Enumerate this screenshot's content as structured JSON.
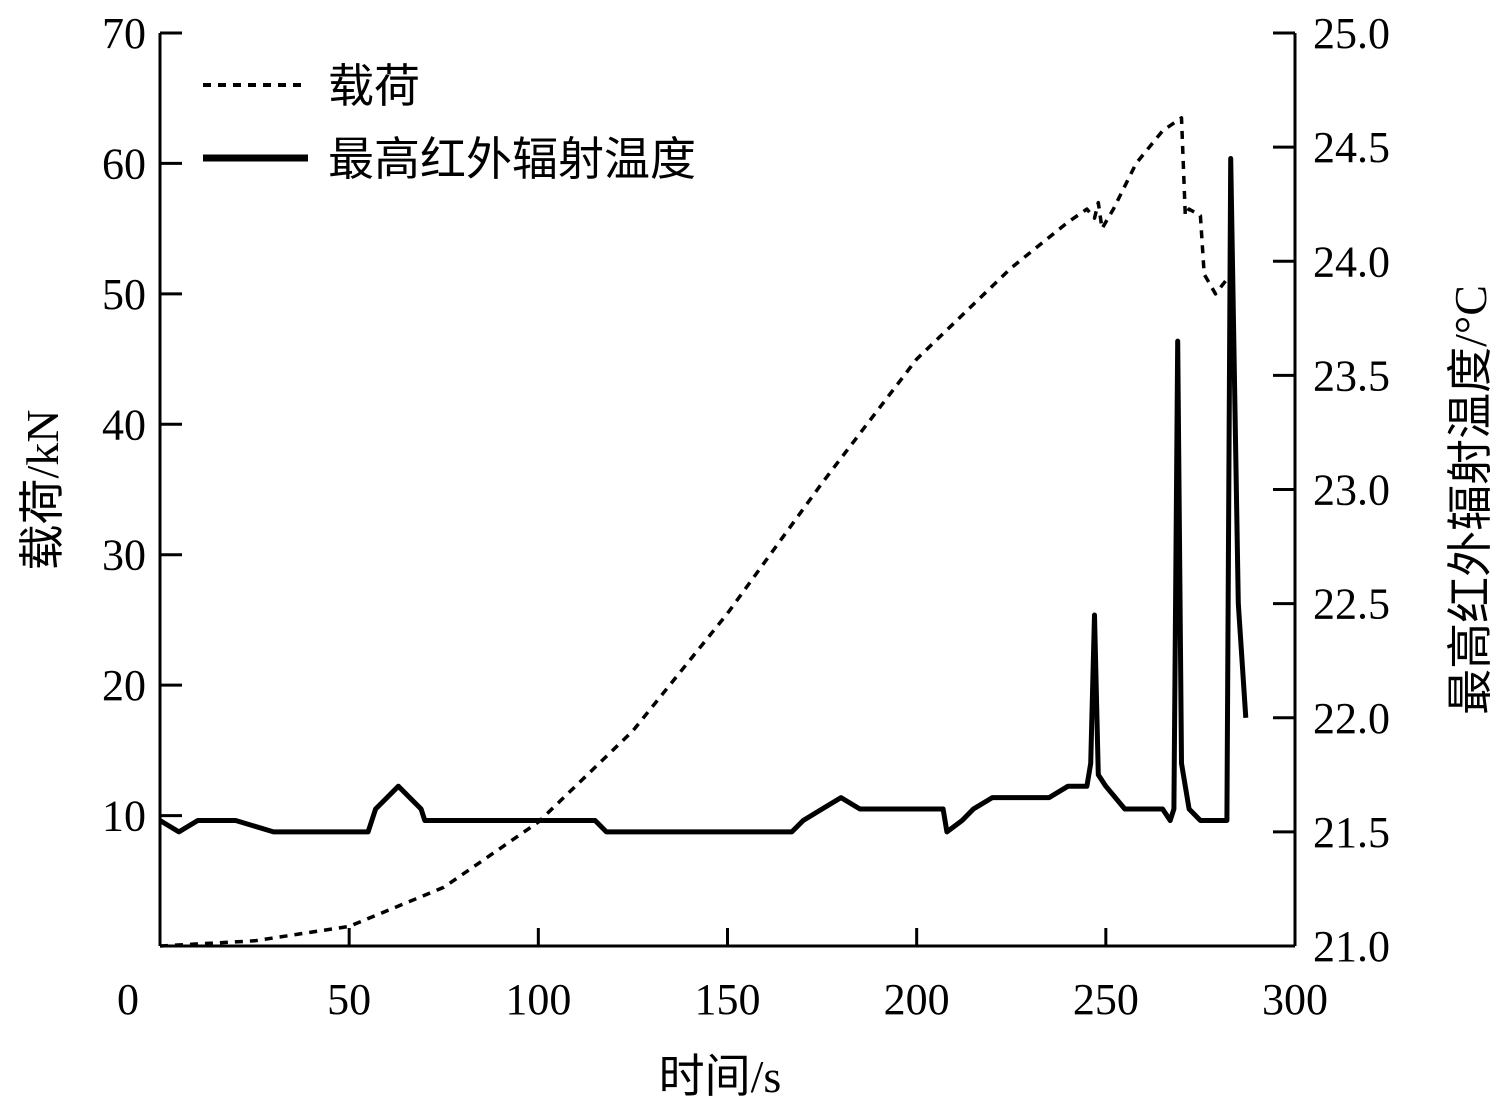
{
  "chart_data": {
    "type": "line",
    "xlabel": "时间/s",
    "ylabel_left": "载荷/kN",
    "ylabel_right": "最高红外辐射温度/°C",
    "xlim": [
      0,
      300
    ],
    "ylim_left": [
      0,
      70
    ],
    "ylim_right": [
      21.0,
      25.0
    ],
    "x_ticks": [
      "0",
      "50",
      "100",
      "150",
      "200",
      "250",
      "300"
    ],
    "y_left_ticks": [
      "10",
      "20",
      "30",
      "40",
      "50",
      "60",
      "70"
    ],
    "y_right_ticks": [
      "21.0",
      "21.5",
      "22.0",
      "22.5",
      "23.0",
      "23.5",
      "24.0",
      "24.5",
      "25.0"
    ],
    "legend_position": "top-left",
    "series": [
      {
        "name": "载荷",
        "axis": "left",
        "style": "dashed",
        "x": [
          0,
          25,
          50,
          75,
          100,
          125,
          150,
          175,
          200,
          225,
          240,
          245,
          247,
          248,
          249,
          252,
          258,
          265,
          270,
          271,
          272,
          275,
          276,
          277,
          279,
          283
        ],
        "y": [
          0,
          0.4,
          1.5,
          4.5,
          9.5,
          16.5,
          25.5,
          35.5,
          45,
          52,
          55.5,
          56.5,
          55.8,
          57,
          55,
          56.5,
          60,
          62.5,
          63.5,
          56,
          56.5,
          56,
          51.5,
          51,
          50,
          51.5
        ]
      },
      {
        "name": "最高红外辐射温度",
        "axis": "right",
        "style": "solid",
        "x": [
          0,
          5,
          10,
          20,
          30,
          40,
          50,
          55,
          57,
          60,
          63,
          66,
          69,
          70,
          75,
          85,
          95,
          105,
          115,
          118,
          125,
          135,
          140,
          150,
          160,
          167,
          170,
          175,
          180,
          185,
          190,
          200,
          207,
          208,
          212,
          215,
          220,
          225,
          230,
          235,
          240,
          245,
          246,
          247,
          248,
          250,
          255,
          260,
          265,
          267,
          268,
          269,
          270,
          272,
          275,
          280,
          282,
          283,
          285,
          287
        ],
        "y": [
          21.55,
          21.5,
          21.55,
          21.55,
          21.5,
          21.5,
          21.5,
          21.5,
          21.6,
          21.65,
          21.7,
          21.65,
          21.6,
          21.55,
          21.55,
          21.55,
          21.55,
          21.55,
          21.55,
          21.5,
          21.5,
          21.5,
          21.5,
          21.5,
          21.5,
          21.5,
          21.55,
          21.6,
          21.65,
          21.6,
          21.6,
          21.6,
          21.6,
          21.5,
          21.55,
          21.6,
          21.65,
          21.65,
          21.65,
          21.65,
          21.7,
          21.7,
          21.8,
          22.45,
          21.75,
          21.7,
          21.6,
          21.6,
          21.6,
          21.55,
          21.6,
          23.65,
          21.8,
          21.6,
          21.55,
          21.55,
          21.55,
          24.45,
          22.5,
          22.0
        ]
      }
    ]
  }
}
